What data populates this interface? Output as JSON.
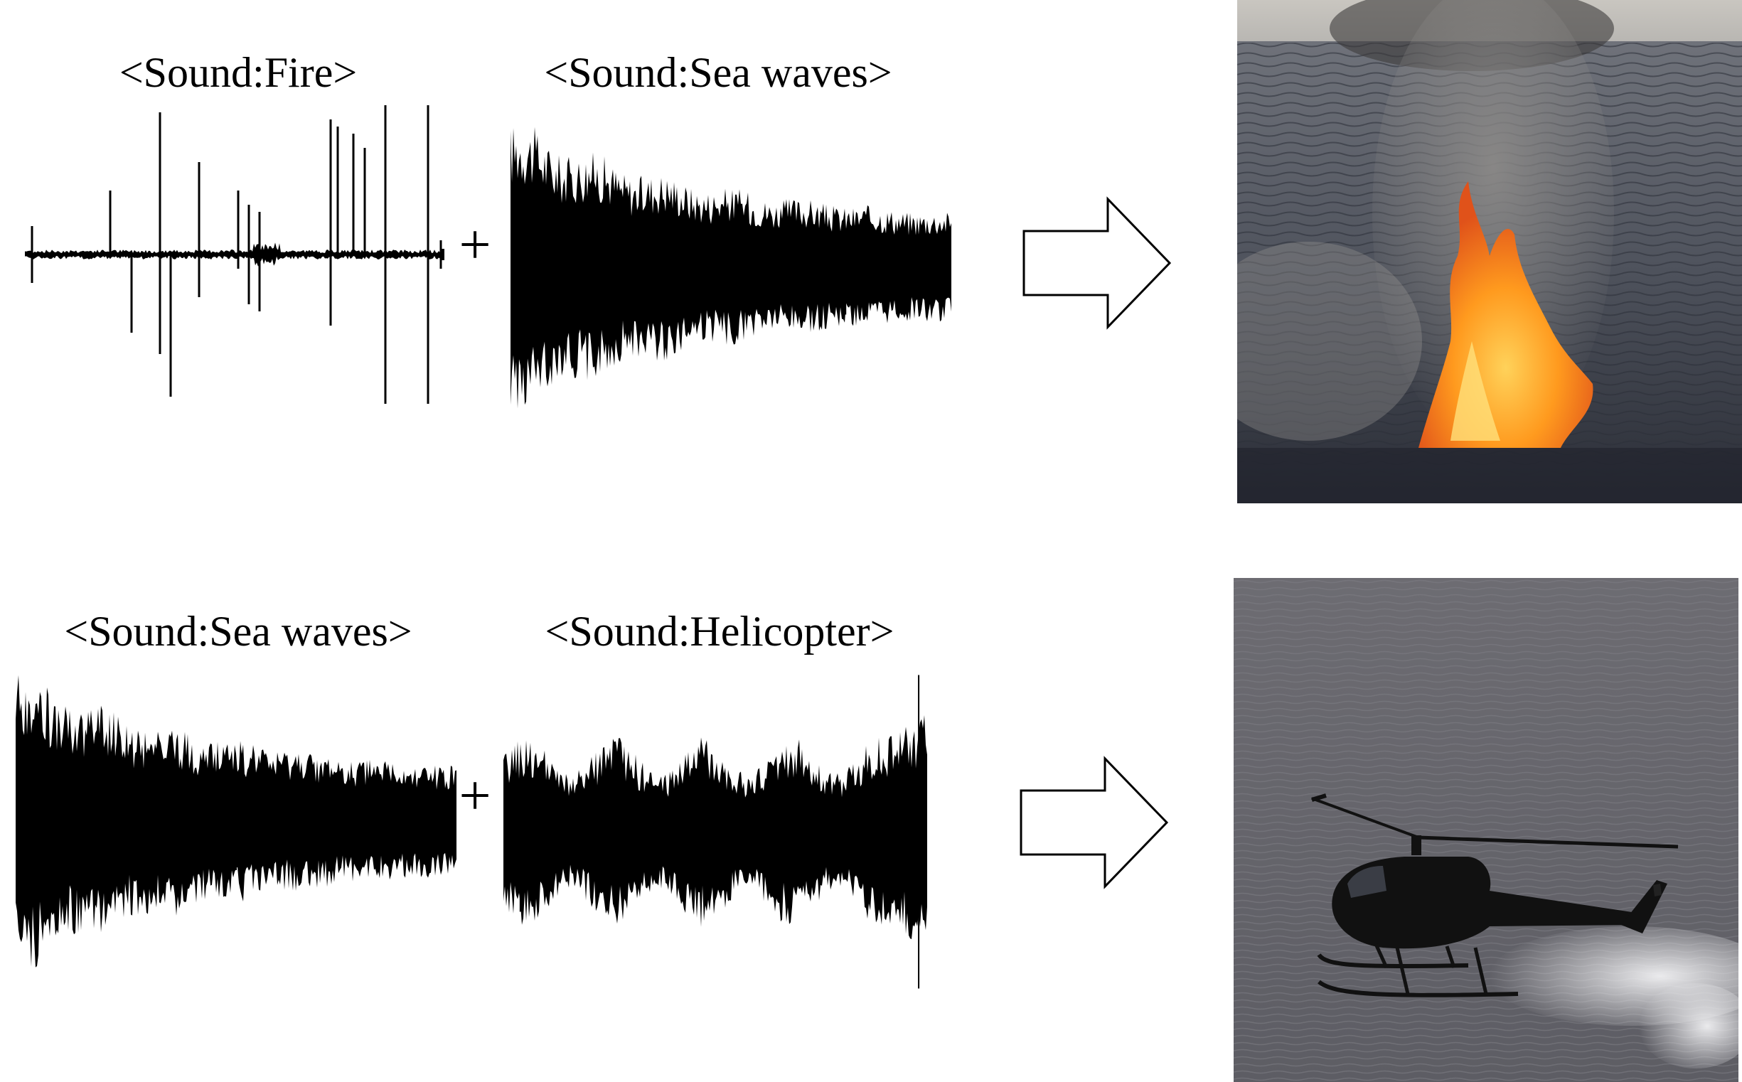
{
  "rows": [
    {
      "sound_a": "<Sound:Fire>",
      "operator": "+",
      "sound_b": "<Sound:Sea waves>",
      "result_image": "fire-on-sea-image"
    },
    {
      "sound_a": "<Sound:Sea waves>",
      "operator": "+",
      "sound_b": "<Sound:Helicopter>",
      "result_image": "helicopter-over-sea-image"
    }
  ],
  "colors": {
    "waveform": "#000000",
    "arrow_stroke": "#000000",
    "sea": "#5a5d66"
  }
}
